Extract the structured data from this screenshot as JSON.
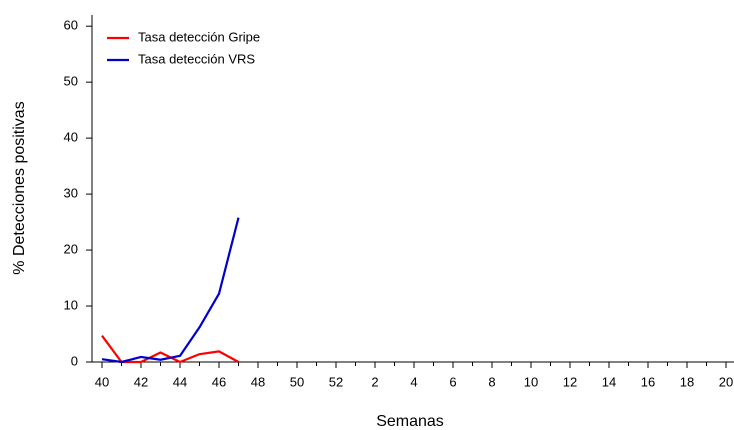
{
  "chart_data": {
    "type": "line",
    "categories": [
      "40",
      null,
      "42",
      null,
      "44",
      null,
      "46",
      null,
      "48",
      null,
      "50",
      null,
      "52",
      null,
      "2",
      null,
      "4",
      null,
      "6",
      null,
      "8",
      null,
      "10",
      null,
      "12",
      null,
      "14",
      null,
      "16",
      null,
      "18",
      null,
      "20"
    ],
    "series": [
      {
        "name": "Tasa detección Gripe",
        "color": "#ff0000",
        "values": [
          4.7,
          0,
          0,
          1.7,
          0,
          1.4,
          1.9,
          0,
          null,
          null,
          null,
          null,
          null,
          null,
          null,
          null,
          null,
          null,
          null,
          null,
          null,
          null,
          null,
          null,
          null,
          null,
          null,
          null,
          null,
          null,
          null,
          null,
          null
        ]
      },
      {
        "name": "Tasa detección VRS",
        "color": "#0000cc",
        "values": [
          0.5,
          0,
          0.9,
          0.4,
          1.1,
          6.2,
          12.2,
          25.8,
          null,
          null,
          null,
          null,
          null,
          null,
          null,
          null,
          null,
          null,
          null,
          null,
          null,
          null,
          null,
          null,
          null,
          null,
          null,
          null,
          null,
          null,
          null,
          null,
          null
        ]
      }
    ],
    "xlabel": "Semanas",
    "ylabel": "% Detecciones positivas",
    "ylim": [
      0,
      62
    ],
    "yticks": [
      0,
      10,
      20,
      30,
      40,
      50,
      60
    ],
    "legend": "top-left"
  }
}
